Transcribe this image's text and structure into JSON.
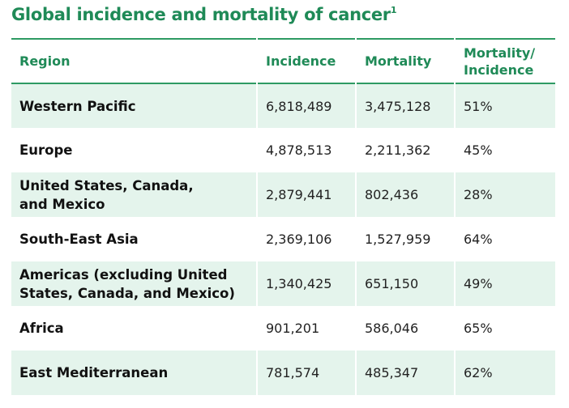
{
  "header": {
    "title": "Global incidence and mortality of cancer",
    "footnote": "1"
  },
  "table": {
    "columns": [
      "Region",
      "Incidence",
      "Mortality",
      "Mortality/\nIncidence"
    ],
    "rows": [
      [
        "Western Pacific",
        "6,818,489",
        "3,475,128",
        "51%"
      ],
      [
        "Europe",
        "4,878,513",
        "2,211,362",
        "45%"
      ],
      [
        "United States, Canada,\nand Mexico",
        "2,879,441",
        "802,436",
        "28%"
      ],
      [
        "South-East Asia",
        "2,369,106",
        "1,527,959",
        "64%"
      ],
      [
        "Americas (excluding United\nStates, Canada, and Mexico)",
        "1,340,425",
        "651,150",
        "49%"
      ],
      [
        "Africa",
        "901,201",
        "586,046",
        "65%"
      ],
      [
        "East Mediterranean",
        "781,574",
        "485,347",
        "62%"
      ]
    ]
  }
}
